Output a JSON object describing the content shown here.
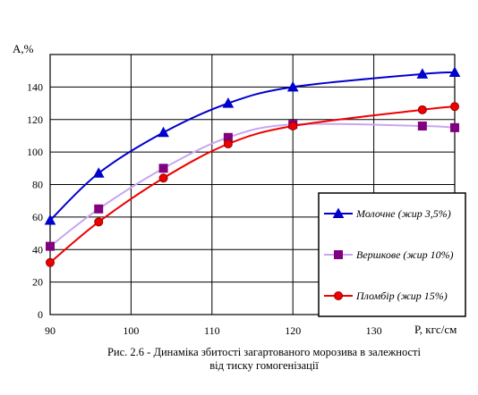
{
  "chart_data": {
    "type": "line",
    "ylabel": "A,%",
    "xlabel": "P, кгс/см",
    "xlim": [
      90,
      140
    ],
    "ylim": [
      0,
      160
    ],
    "x_ticks": [
      90,
      100,
      110,
      120,
      130
    ],
    "y_ticks": [
      0,
      20,
      40,
      60,
      80,
      100,
      120,
      140
    ],
    "grid": true,
    "legend_position": "bottom-right",
    "series": [
      {
        "name": "Молочне (жир 3,5%)",
        "color": "#0000cc",
        "marker": "triangle",
        "x": [
          90,
          96,
          104,
          112,
          120,
          136,
          140
        ],
        "y": [
          58,
          87,
          112,
          130,
          140,
          148,
          149
        ]
      },
      {
        "name": "Вершкове (жир 10%)",
        "color": "#c9a6ee",
        "marker_color": "#800080",
        "marker": "square",
        "x": [
          90,
          96,
          104,
          112,
          120,
          136,
          140
        ],
        "y": [
          42,
          65,
          90,
          109,
          117,
          116,
          115
        ]
      },
      {
        "name": "Пломбір (жир 15%)",
        "color": "#ee0000",
        "marker": "circle",
        "x": [
          90,
          96,
          104,
          112,
          120,
          136,
          140
        ],
        "y": [
          32,
          57,
          84,
          105,
          116,
          126,
          128
        ]
      }
    ]
  },
  "caption": {
    "line1": "Рис. 2.6 -  Динаміка збитості загартованого морозива в залежності",
    "line2": "від тиску гомогенізації"
  }
}
